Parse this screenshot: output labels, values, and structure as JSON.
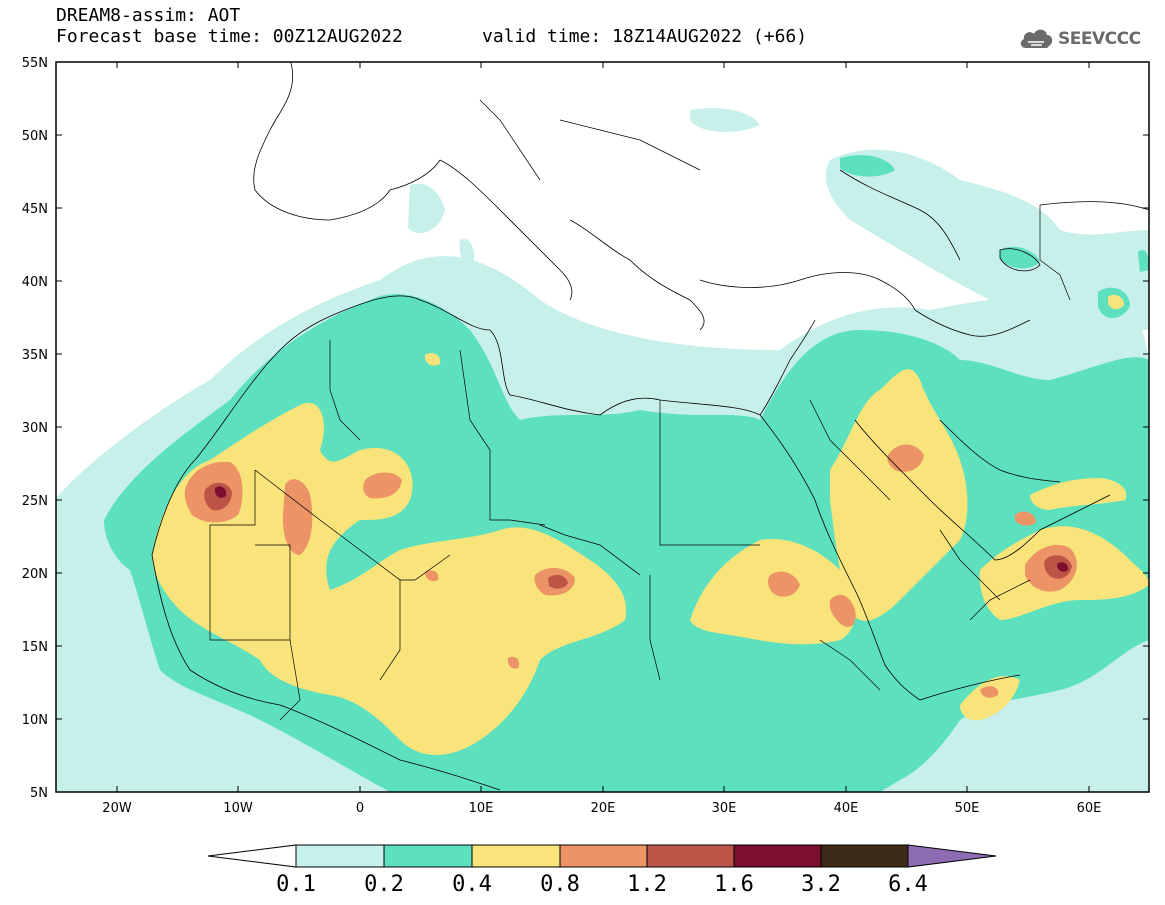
{
  "header": {
    "title_line1": "DREAM8-assim: AOT",
    "title_line2": "Forecast base time: 00Z12AUG2022",
    "valid_time": "valid time: 18Z14AUG2022 (+66)",
    "logo_text": "SEEVCCC",
    "logo_icon": "cloud-icon"
  },
  "axes": {
    "lat_ticks": [
      "55N",
      "50N",
      "45N",
      "40N",
      "35N",
      "30N",
      "25N",
      "20N",
      "15N",
      "10N",
      "5N"
    ],
    "lon_ticks": [
      "20W",
      "10W",
      "0",
      "10E",
      "20E",
      "30E",
      "40E",
      "50E",
      "60E"
    ]
  },
  "colorbar": {
    "labels": [
      "0.1",
      "0.2",
      "0.4",
      "0.8",
      "1.2",
      "1.6",
      "3.2",
      "6.4"
    ],
    "colors": [
      "#c8f0ea",
      "#5de0be",
      "#f8e47a",
      "#ec9466",
      "#bc5448",
      "#7c0e2e",
      "#3e2a18",
      "#8e6cb4"
    ]
  },
  "legend_colors": {
    "level_0_1": "#c8f0ea",
    "level_0_2": "#5de0be",
    "level_0_4": "#f8e47a",
    "level_0_8": "#ec9466",
    "level_1_2": "#bc5448",
    "level_1_6": "#7c0e2e",
    "level_3_2": "#3e2a18",
    "level_6_4": "#8e6cb4"
  }
}
